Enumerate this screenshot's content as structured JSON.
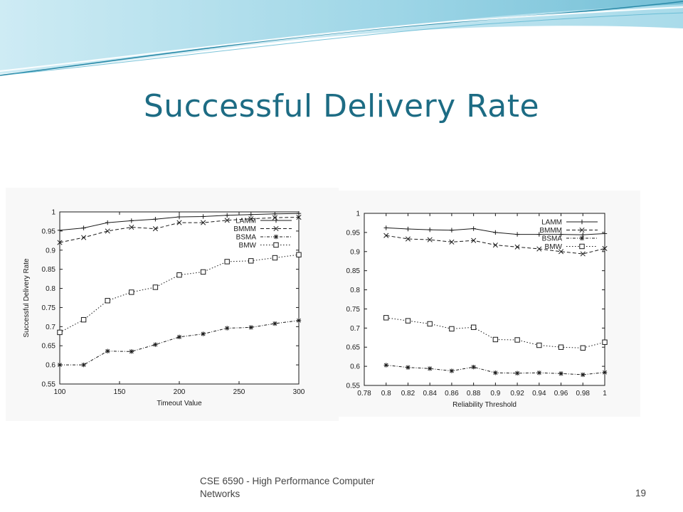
{
  "slide": {
    "title": "Successful Delivery Rate",
    "footer_line1": "CSE 6590 - High Performance Computer",
    "footer_line2": "Networks",
    "page_number": "19"
  },
  "colors": {
    "title": "#1d6c84",
    "banner_light": "#d6eef6",
    "banner_mid": "#8ccde0",
    "banner_dark": "#2a8aa8"
  },
  "chart_data": [
    {
      "type": "line",
      "xlabel": "Timeout Value",
      "ylabel": "Successful Delivery Rate",
      "xlim": [
        100,
        300
      ],
      "ylim": [
        0.55,
        1.0
      ],
      "xticks": [
        100,
        150,
        200,
        250,
        300
      ],
      "yticks": [
        0.55,
        0.6,
        0.65,
        0.7,
        0.75,
        0.8,
        0.85,
        0.9,
        0.95,
        1
      ],
      "tick_labels_x": [
        "100",
        "150",
        "200",
        "250",
        "300"
      ],
      "tick_labels_y": [
        "0.55",
        "0.6",
        "0.65",
        "0.7",
        "0.75",
        "0.8",
        "0.85",
        "0.9",
        "0.95",
        "1"
      ],
      "legend_position": "top-right",
      "grid": false,
      "x": [
        100,
        120,
        140,
        160,
        180,
        200,
        220,
        240,
        260,
        280,
        300
      ],
      "series": [
        {
          "name": "LAMM",
          "marker": "plus",
          "dash": "solid",
          "values": [
            0.952,
            0.958,
            0.972,
            0.977,
            0.981,
            0.987,
            0.988,
            0.991,
            0.993,
            0.995,
            0.996
          ]
        },
        {
          "name": "BMMM",
          "marker": "x",
          "dash": "dashed",
          "values": [
            0.92,
            0.933,
            0.95,
            0.96,
            0.956,
            0.972,
            0.972,
            0.978,
            0.982,
            0.985,
            0.986
          ]
        },
        {
          "name": "BSMA",
          "marker": "star",
          "dash": "dashdot",
          "values": [
            0.6,
            0.6,
            0.636,
            0.635,
            0.653,
            0.673,
            0.681,
            0.696,
            0.698,
            0.708,
            0.716
          ]
        },
        {
          "name": "BMW",
          "marker": "square",
          "dash": "dotted",
          "values": [
            0.685,
            0.718,
            0.768,
            0.79,
            0.803,
            0.835,
            0.843,
            0.87,
            0.872,
            0.88,
            0.888
          ]
        }
      ]
    },
    {
      "type": "line",
      "xlabel": "Reliability Threshold",
      "ylabel": "Successful Delivery Rate",
      "xlim": [
        0.78,
        1.0
      ],
      "ylim": [
        0.55,
        1.0
      ],
      "xticks": [
        0.78,
        0.8,
        0.82,
        0.84,
        0.86,
        0.88,
        0.9,
        0.92,
        0.94,
        0.96,
        0.98,
        1
      ],
      "yticks": [
        0.55,
        0.6,
        0.65,
        0.7,
        0.75,
        0.8,
        0.85,
        0.9,
        0.95,
        1
      ],
      "tick_labels_x": [
        "0.78",
        "0.8",
        "0.82",
        "0.84",
        "0.86",
        "0.88",
        "0.9",
        "0.92",
        "0.94",
        "0.96",
        "0.98",
        "1"
      ],
      "tick_labels_y": [
        "0.55",
        "0.6",
        "0.65",
        "0.7",
        "0.75",
        "0.8",
        "0.85",
        "0.9",
        "0.95",
        "1"
      ],
      "legend_position": "top-right",
      "grid": false,
      "x": [
        0.8,
        0.82,
        0.84,
        0.86,
        0.88,
        0.9,
        0.92,
        0.94,
        0.96,
        0.98,
        1.0
      ],
      "series": [
        {
          "name": "LAMM",
          "marker": "plus",
          "dash": "solid",
          "values": [
            0.962,
            0.959,
            0.957,
            0.956,
            0.96,
            0.95,
            0.945,
            0.945,
            0.945,
            0.944,
            0.947
          ]
        },
        {
          "name": "BMMM",
          "marker": "x",
          "dash": "dashed",
          "values": [
            0.942,
            0.933,
            0.931,
            0.925,
            0.929,
            0.917,
            0.912,
            0.907,
            0.9,
            0.894,
            0.908
          ]
        },
        {
          "name": "BSMA",
          "marker": "star",
          "dash": "dashdot",
          "values": [
            0.603,
            0.597,
            0.594,
            0.588,
            0.598,
            0.583,
            0.582,
            0.583,
            0.581,
            0.578,
            0.584
          ]
        },
        {
          "name": "BMW",
          "marker": "square",
          "dash": "dotted",
          "values": [
            0.727,
            0.719,
            0.711,
            0.698,
            0.702,
            0.67,
            0.669,
            0.655,
            0.65,
            0.648,
            0.663
          ]
        }
      ]
    }
  ]
}
